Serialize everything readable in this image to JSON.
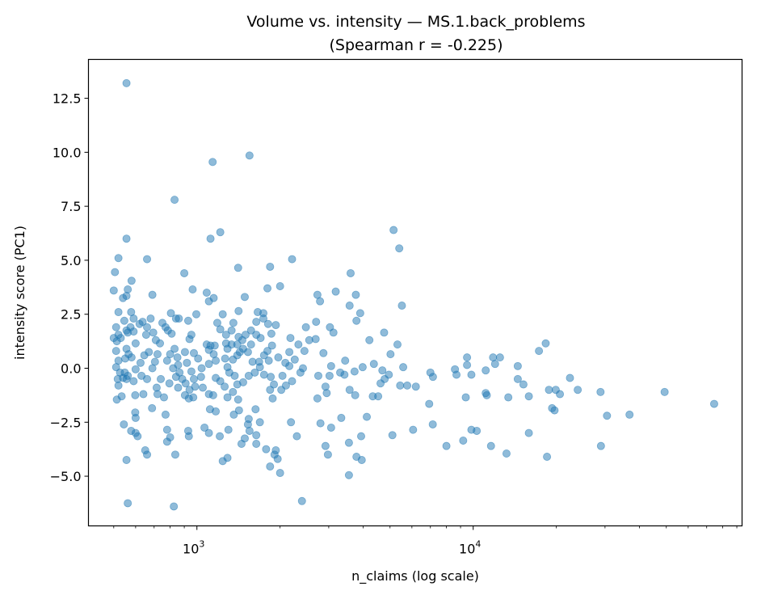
{
  "chart_data": {
    "type": "scatter",
    "title": "Volume vs. intensity — MS.1.back_problems",
    "subtitle": "(Spearman r = -0.225)",
    "xlabel": "n_claims (log scale)",
    "ylabel": "intensity score (PC1)",
    "xscale": "log",
    "xlim": [
      405,
      94000
    ],
    "ylim": [
      -7.3,
      14.3
    ],
    "xticks": [
      {
        "value": 1000,
        "base": "10",
        "exp": "3"
      },
      {
        "value": 10000,
        "base": "10",
        "exp": "4"
      }
    ],
    "yticks": [
      {
        "value": -5,
        "label": "−5.0"
      },
      {
        "value": -2.5,
        "label": "−2.5"
      },
      {
        "value": 0,
        "label": "0.0"
      },
      {
        "value": 2.5,
        "label": "2.5"
      },
      {
        "value": 5,
        "label": "5.0"
      },
      {
        "value": 7.5,
        "label": "7.5"
      },
      {
        "value": 10,
        "label": "10.0"
      },
      {
        "value": 12.5,
        "label": "12.5"
      }
    ],
    "grid": false,
    "color": "#1f77b4",
    "alpha": 0.5,
    "points": [
      [
        556,
        13.2
      ],
      [
        1140,
        9.55
      ],
      [
        1550,
        9.85
      ],
      [
        830,
        7.8
      ],
      [
        556,
        6.0
      ],
      [
        1120,
        6.0
      ],
      [
        1215,
        6.3
      ],
      [
        660,
        5.05
      ],
      [
        520,
        5.1
      ],
      [
        5150,
        6.4
      ],
      [
        5400,
        5.55
      ],
      [
        2210,
        5.05
      ],
      [
        1840,
        4.7
      ],
      [
        1410,
        4.65
      ],
      [
        900,
        4.4
      ],
      [
        3600,
        4.4
      ],
      [
        505,
        4.45
      ],
      [
        500,
        3.6
      ],
      [
        5520,
        2.9
      ],
      [
        580,
        4.05
      ],
      [
        562,
        3.65
      ],
      [
        556,
        3.35
      ],
      [
        540,
        3.25
      ],
      [
        965,
        3.65
      ],
      [
        1085,
        3.5
      ],
      [
        1150,
        3.25
      ],
      [
        1105,
        3.1
      ],
      [
        690,
        3.4
      ],
      [
        1800,
        3.7
      ],
      [
        2000,
        3.8
      ],
      [
        2730,
        3.4
      ],
      [
        2790,
        3.1
      ],
      [
        3180,
        3.55
      ],
      [
        3760,
        3.4
      ],
      [
        3570,
        2.9
      ],
      [
        1490,
        3.3
      ],
      [
        520,
        2.6
      ],
      [
        510,
        1.9
      ],
      [
        578,
        2.6
      ],
      [
        3900,
        2.55
      ],
      [
        3780,
        2.2
      ],
      [
        3120,
        1.65
      ],
      [
        3030,
        1.9
      ],
      [
        2700,
        2.15
      ],
      [
        2480,
        1.9
      ],
      [
        2550,
        1.3
      ],
      [
        4210,
        1.3
      ],
      [
        4760,
        1.65
      ],
      [
        5020,
        0.65
      ],
      [
        5320,
        1.1
      ],
      [
        5580,
        0.05
      ],
      [
        4370,
        0.2
      ],
      [
        3440,
        0.35
      ],
      [
        3980,
        0.05
      ],
      [
        4690,
        -0.1
      ],
      [
        4950,
        -0.3
      ],
      [
        4780,
        -0.5
      ],
      [
        4620,
        -0.7
      ],
      [
        5440,
        -0.8
      ],
      [
        5770,
        -0.8
      ],
      [
        6200,
        -0.85
      ],
      [
        7000,
        -0.2
      ],
      [
        7150,
        -0.4
      ],
      [
        6930,
        -1.65
      ],
      [
        7140,
        -2.6
      ],
      [
        6060,
        -2.85
      ],
      [
        5100,
        -3.1
      ],
      [
        3930,
        -3.15
      ],
      [
        4120,
        -2.25
      ],
      [
        3570,
        -1.0
      ],
      [
        3740,
        -1.25
      ],
      [
        4330,
        -1.3
      ],
      [
        4530,
        -1.3
      ],
      [
        3330,
        -2.3
      ],
      [
        3060,
        -2.75
      ],
      [
        2800,
        -2.55
      ],
      [
        2730,
        -1.4
      ],
      [
        2950,
        -1.15
      ],
      [
        2920,
        -0.85
      ],
      [
        2750,
        -0.35
      ],
      [
        3020,
        -0.35
      ],
      [
        3420,
        -0.3
      ],
      [
        3720,
        -0.15
      ],
      [
        3300,
        -0.2
      ],
      [
        3060,
        0.1
      ],
      [
        2870,
        0.7
      ],
      [
        2450,
        0.8
      ],
      [
        2690,
        1.35
      ],
      [
        2330,
        1.1
      ],
      [
        2180,
        1.4
      ],
      [
        2160,
        0.75
      ],
      [
        2260,
        0.4
      ],
      [
        2420,
        0
      ],
      [
        2370,
        -0.2
      ],
      [
        2210,
        -0.6
      ],
      [
        2040,
        -0.35
      ],
      [
        2090,
        0.25
      ],
      [
        1970,
        0.5
      ],
      [
        1820,
        0.35
      ],
      [
        1870,
        1.05
      ],
      [
        1800,
        0.8
      ],
      [
        1750,
        0.6
      ],
      [
        1700,
        1.4
      ],
      [
        1860,
        1.6
      ],
      [
        1930,
        2.0
      ],
      [
        1810,
        2.05
      ],
      [
        1740,
        2.55
      ],
      [
        1660,
        2.6
      ],
      [
        1740,
        2.3
      ],
      [
        1640,
        2.15
      ],
      [
        1570,
        1.75
      ],
      [
        1500,
        1.55
      ],
      [
        1460,
        1.3
      ],
      [
        1430,
        0.75
      ],
      [
        1400,
        0.6
      ],
      [
        1350,
        0.4
      ],
      [
        1290,
        0.05
      ],
      [
        1370,
        -0.35
      ],
      [
        1310,
        -0.2
      ],
      [
        1260,
        -0.85
      ],
      [
        1290,
        -1.35
      ],
      [
        1350,
        -1.1
      ],
      [
        1400,
        -0.75
      ],
      [
        1470,
        -0.65
      ],
      [
        1540,
        -0.35
      ],
      [
        1620,
        -0.2
      ],
      [
        1690,
        0.05
      ],
      [
        1750,
        -0.3
      ],
      [
        1850,
        -0.4
      ],
      [
        1900,
        -0.75
      ],
      [
        1840,
        -1.0
      ],
      [
        1880,
        -1.4
      ],
      [
        2020,
        -1.0
      ],
      [
        2100,
        -0.8
      ],
      [
        2160,
        0.1
      ],
      [
        1630,
        -1.9
      ],
      [
        1540,
        -2.35
      ],
      [
        1530,
        -2.6
      ],
      [
        1550,
        -2.9
      ],
      [
        1490,
        -3.25
      ],
      [
        1640,
        -3.5
      ],
      [
        1780,
        -3.75
      ],
      [
        1930,
        -3.8
      ],
      [
        1960,
        -4.2
      ],
      [
        1910,
        -4.0
      ],
      [
        1840,
        -4.55
      ],
      [
        2000,
        -4.85
      ],
      [
        2190,
        -2.5
      ],
      [
        2300,
        -3.15
      ],
      [
        2400,
        -6.15
      ],
      [
        2920,
        -3.6
      ],
      [
        2980,
        -4.0
      ],
      [
        3780,
        -4.1
      ],
      [
        3950,
        -4.25
      ],
      [
        3550,
        -4.95
      ],
      [
        3550,
        -3.45
      ],
      [
        8000,
        -3.6
      ],
      [
        9200,
        -3.35
      ],
      [
        9850,
        -2.85
      ],
      [
        10300,
        -2.9
      ],
      [
        9400,
        -1.35
      ],
      [
        8590,
        -0.05
      ],
      [
        8700,
        -0.3
      ],
      [
        9500,
        0.5
      ],
      [
        9500,
        0.15
      ],
      [
        9850,
        -0.3
      ],
      [
        11100,
        -0.1
      ],
      [
        11100,
        -1.15
      ],
      [
        11200,
        -1.25
      ],
      [
        11800,
        0.5
      ],
      [
        12000,
        0.2
      ],
      [
        12500,
        0.5
      ],
      [
        11600,
        -3.6
      ],
      [
        13200,
        -3.95
      ],
      [
        13400,
        -1.35
      ],
      [
        14500,
        0.1
      ],
      [
        14500,
        -0.5
      ],
      [
        15200,
        -0.75
      ],
      [
        15900,
        -1.3
      ],
      [
        15900,
        -3.0
      ],
      [
        17300,
        0.8
      ],
      [
        18300,
        1.15
      ],
      [
        18500,
        -4.1
      ],
      [
        18800,
        -1.0
      ],
      [
        19300,
        -1.85
      ],
      [
        19700,
        -1.95
      ],
      [
        19900,
        -1.0
      ],
      [
        20600,
        -1.2
      ],
      [
        22400,
        -0.45
      ],
      [
        23900,
        -1.0
      ],
      [
        28900,
        -1.1
      ],
      [
        29000,
        -3.6
      ],
      [
        30500,
        -2.2
      ],
      [
        36800,
        -2.15
      ],
      [
        49300,
        -1.1
      ],
      [
        74500,
        -1.65
      ],
      [
        500,
        1.4
      ],
      [
        520,
        1.55
      ],
      [
        513,
        1.25
      ],
      [
        530,
        1.4
      ],
      [
        510,
        0.8
      ],
      [
        520,
        0.35
      ],
      [
        510,
        0.05
      ],
      [
        527,
        -0.2
      ],
      [
        517,
        -0.5
      ],
      [
        520,
        -0.8
      ],
      [
        513,
        -1.45
      ],
      [
        534,
        -1.3
      ],
      [
        540,
        -0.45
      ],
      [
        548,
        -0.2
      ],
      [
        562,
        -0.35
      ],
      [
        556,
        -0.5
      ],
      [
        544,
        -2.6
      ],
      [
        556,
        -4.25
      ],
      [
        562,
        -6.25
      ],
      [
        578,
        -2.9
      ],
      [
        600,
        -3.0
      ],
      [
        610,
        -3.15
      ],
      [
        598,
        -2.05
      ],
      [
        600,
        -2.3
      ],
      [
        598,
        -1.25
      ],
      [
        640,
        -1.2
      ],
      [
        650,
        -3.8
      ],
      [
        660,
        -4.0
      ],
      [
        688,
        -1.85
      ],
      [
        556,
        1.75
      ],
      [
        575,
        1.9
      ],
      [
        590,
        1.7
      ],
      [
        546,
        2.2
      ],
      [
        562,
        1.65
      ],
      [
        556,
        0.9
      ],
      [
        566,
        0.65
      ],
      [
        580,
        0.5
      ],
      [
        550,
        0.45
      ],
      [
        600,
        1.15
      ],
      [
        590,
        2.3
      ],
      [
        620,
        2.05
      ],
      [
        636,
        2.15
      ],
      [
        660,
        1.9
      ],
      [
        680,
        2.3
      ],
      [
        655,
        1.55
      ],
      [
        695,
        1.65
      ],
      [
        670,
        0.75
      ],
      [
        645,
        0.6
      ],
      [
        625,
        0.25
      ],
      [
        600,
        -0.05
      ],
      [
        630,
        -0.35
      ],
      [
        590,
        -0.6
      ],
      [
        660,
        -0.5
      ],
      [
        690,
        0
      ],
      [
        705,
        0.3
      ],
      [
        720,
        0.65
      ],
      [
        735,
        1.15
      ],
      [
        750,
        2.1
      ],
      [
        770,
        1.9
      ],
      [
        710,
        1.3
      ],
      [
        715,
        -0.9
      ],
      [
        720,
        -1.2
      ],
      [
        740,
        -0.5
      ],
      [
        760,
        -1.35
      ],
      [
        770,
        -2.15
      ],
      [
        780,
        -2.85
      ],
      [
        780,
        -3.4
      ],
      [
        800,
        -3.2
      ],
      [
        835,
        -4.0
      ],
      [
        825,
        -6.4
      ],
      [
        805,
        2.55
      ],
      [
        840,
        2.3
      ],
      [
        860,
        2.3
      ],
      [
        810,
        1.6
      ],
      [
        785,
        1.75
      ],
      [
        830,
        0.9
      ],
      [
        800,
        0.65
      ],
      [
        780,
        0.35
      ],
      [
        850,
        0.5
      ],
      [
        855,
        0.15
      ],
      [
        820,
        0
      ],
      [
        865,
        -0.2
      ],
      [
        840,
        -0.4
      ],
      [
        885,
        -0.5
      ],
      [
        795,
        -0.7
      ],
      [
        855,
        -0.9
      ],
      [
        910,
        -0.7
      ],
      [
        940,
        -1.0
      ],
      [
        905,
        -1.25
      ],
      [
        935,
        -1.4
      ],
      [
        970,
        -1.35
      ],
      [
        985,
        -0.85
      ],
      [
        975,
        -0.5
      ],
      [
        955,
        -0.15
      ],
      [
        920,
        0.25
      ],
      [
        905,
        0.75
      ],
      [
        930,
        2.2
      ],
      [
        940,
        1.35
      ],
      [
        955,
        1.55
      ],
      [
        975,
        0.7
      ],
      [
        1010,
        0.45
      ],
      [
        995,
        2.5
      ],
      [
        1040,
        0
      ],
      [
        1035,
        -0.4
      ],
      [
        1050,
        -0.9
      ],
      [
        1065,
        -2.75
      ],
      [
        1105,
        -3.0
      ],
      [
        930,
        -2.9
      ],
      [
        935,
        -3.15
      ],
      [
        1105,
        -1.2
      ],
      [
        1115,
        -1.9
      ],
      [
        1170,
        -2.0
      ],
      [
        1145,
        -1.25
      ],
      [
        1085,
        1.1
      ],
      [
        1105,
        0.85
      ],
      [
        1120,
        1.05
      ],
      [
        1160,
        1.05
      ],
      [
        1150,
        0.65
      ],
      [
        1170,
        0.35
      ],
      [
        1105,
        0.2
      ],
      [
        1170,
        -0.45
      ],
      [
        1215,
        -0.6
      ],
      [
        1185,
        2.1
      ],
      [
        1215,
        1.8
      ],
      [
        1240,
        2.5
      ],
      [
        1275,
        1.55
      ],
      [
        1335,
        1.75
      ],
      [
        1355,
        2.1
      ],
      [
        1290,
        0.9
      ],
      [
        1275,
        1.15
      ],
      [
        1335,
        1.1
      ],
      [
        1265,
        0.45
      ],
      [
        1415,
        2.65
      ],
      [
        1415,
        1.45
      ],
      [
        1400,
        1.1
      ],
      [
        1470,
        0.9
      ],
      [
        1530,
        0.75
      ],
      [
        1570,
        1.1
      ],
      [
        1640,
        1.55
      ],
      [
        1590,
        0.3
      ],
      [
        1680,
        0.3
      ],
      [
        1210,
        -3.15
      ],
      [
        1240,
        -4.3
      ],
      [
        1290,
        -4.15
      ],
      [
        1300,
        -2.85
      ],
      [
        1360,
        -2.15
      ],
      [
        1420,
        -1.95
      ],
      [
        1410,
        -1.45
      ],
      [
        1450,
        -3.5
      ],
      [
        1640,
        -3.1
      ],
      [
        1690,
        -2.5
      ]
    ]
  }
}
